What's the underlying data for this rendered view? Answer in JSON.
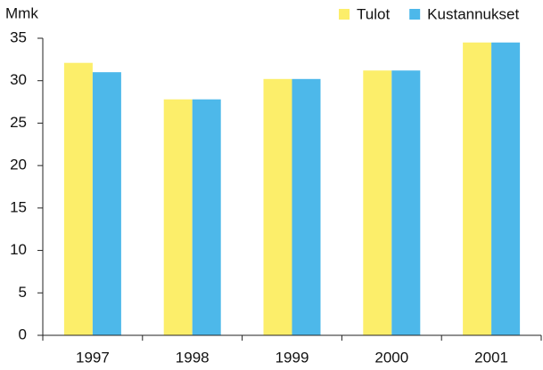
{
  "chart_data": {
    "type": "bar",
    "y_label": "Mmk",
    "categories": [
      "1997",
      "1998",
      "1999",
      "2000",
      "2001"
    ],
    "series": [
      {
        "name": "Tulot",
        "color": "#fcee6a",
        "values": [
          32.1,
          27.8,
          30.2,
          31.2,
          34.5
        ]
      },
      {
        "name": "Kustannukset",
        "color": "#4db8ea",
        "values": [
          31.0,
          27.8,
          30.2,
          31.2,
          34.5
        ]
      }
    ],
    "ylim": [
      0,
      35
    ],
    "yticks": [
      0,
      5,
      10,
      15,
      20,
      25,
      30,
      35
    ],
    "legend": "top-right"
  }
}
